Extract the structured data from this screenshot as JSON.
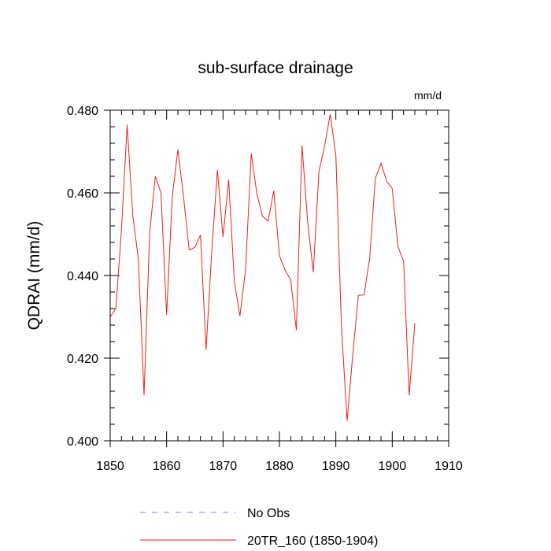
{
  "chart_data": {
    "type": "line",
    "title": "sub-surface drainage",
    "units_label": "mm/d",
    "ylabel": "QDRAI  (mm/d)",
    "xlabel": "",
    "xlim": [
      1850,
      1910
    ],
    "ylim": [
      0.4,
      0.48
    ],
    "x_ticks": [
      1850,
      1860,
      1870,
      1880,
      1890,
      1900,
      1910
    ],
    "x_tick_labels": [
      "1850",
      "1860",
      "1870",
      "1880",
      "1890",
      "1900",
      "1910"
    ],
    "y_ticks": [
      0.4,
      0.42,
      0.44,
      0.46,
      0.48
    ],
    "y_tick_labels": [
      "0.400",
      "0.420",
      "0.440",
      "0.460",
      "0.480"
    ],
    "x_minor_step": 2,
    "y_minor_step": 0.004,
    "grid": false,
    "series": [
      {
        "name": "20TR_160 (1850-1904)",
        "color": "#e8211c",
        "style": "solid",
        "x": [
          1850,
          1851,
          1852,
          1853,
          1854,
          1855,
          1856,
          1857,
          1858,
          1859,
          1860,
          1861,
          1862,
          1863,
          1864,
          1865,
          1866,
          1867,
          1868,
          1869,
          1870,
          1871,
          1872,
          1873,
          1874,
          1875,
          1876,
          1877,
          1878,
          1879,
          1880,
          1881,
          1882,
          1883,
          1884,
          1885,
          1886,
          1887,
          1888,
          1889,
          1890,
          1891,
          1892,
          1893,
          1894,
          1895,
          1896,
          1897,
          1898,
          1899,
          1900,
          1901,
          1902,
          1903,
          1904
        ],
        "values": [
          0.43,
          0.432,
          0.451,
          0.4765,
          0.4545,
          0.444,
          0.411,
          0.4505,
          0.464,
          0.46,
          0.4305,
          0.459,
          0.4705,
          0.459,
          0.4462,
          0.4468,
          0.4498,
          0.422,
          0.4458,
          0.4655,
          0.4493,
          0.4632,
          0.4385,
          0.4302,
          0.4415,
          0.4695,
          0.4598,
          0.4543,
          0.4532,
          0.4605,
          0.4448,
          0.4413,
          0.439,
          0.4268,
          0.4715,
          0.453,
          0.4408,
          0.4652,
          0.4713,
          0.479,
          0.469,
          0.4275,
          0.4048,
          0.421,
          0.4352,
          0.4353,
          0.4442,
          0.4635,
          0.4672,
          0.4628,
          0.461,
          0.447,
          0.4435,
          0.411,
          0.4285
        ]
      },
      {
        "name": "No Obs",
        "color": "#8a8ae6",
        "style": "dashed",
        "x": [],
        "values": []
      }
    ],
    "legend": [
      {
        "label": "No Obs",
        "color": "#8a8ae6",
        "style": "dashed"
      },
      {
        "label": "20TR_160 (1850-1904)",
        "color": "#e8211c",
        "style": "solid"
      }
    ],
    "legend_position": "bottom"
  }
}
